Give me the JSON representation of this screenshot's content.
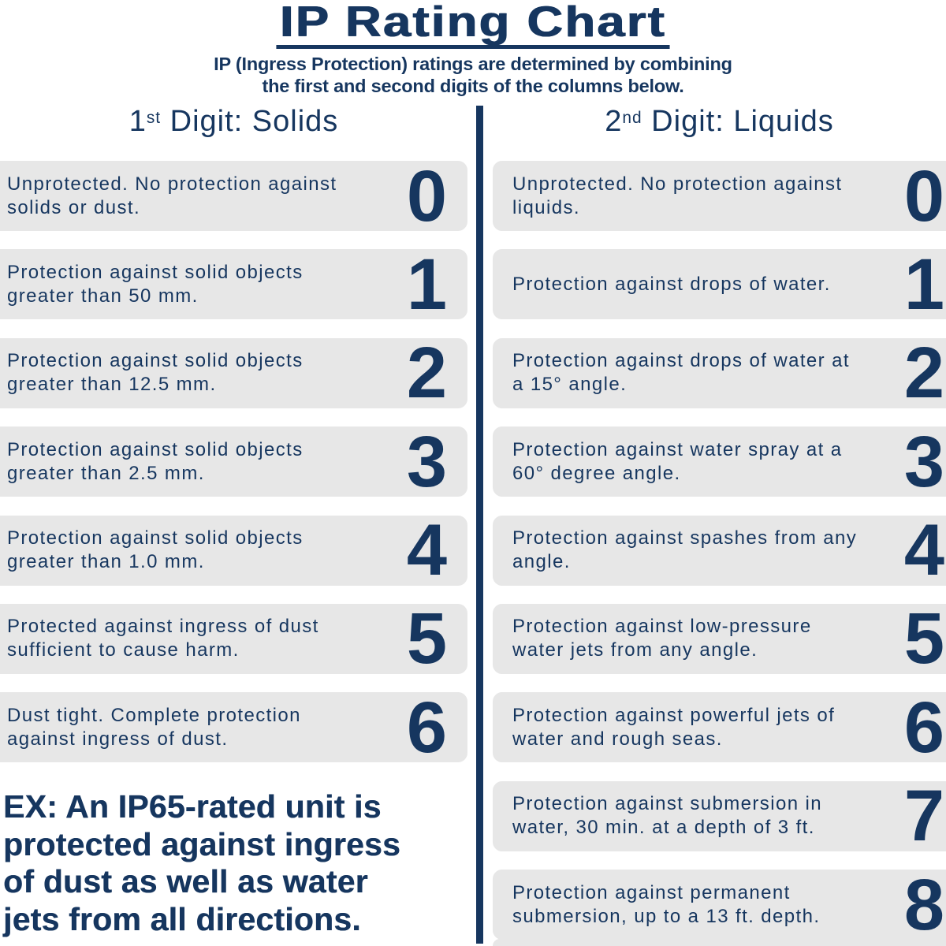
{
  "header": {
    "title": "IP Rating Chart",
    "subtitle": "IP (Ingress Protection) ratings are determined by combining\nthe first and second digits of the columns below."
  },
  "columns": {
    "solids": {
      "heading": {
        "number": "1",
        "ordinal": "st",
        "rest": " Digit: Solids"
      },
      "rows": [
        {
          "digit": "0",
          "description": "Unprotected. No protection against\nsolids or dust."
        },
        {
          "digit": "1",
          "description": "Protection against solid objects\ngreater than 50 mm."
        },
        {
          "digit": "2",
          "description": "Protection against solid objects\ngreater than 12.5 mm."
        },
        {
          "digit": "3",
          "description": "Protection against solid objects\ngreater than 2.5 mm."
        },
        {
          "digit": "4",
          "description": "Protection against solid objects\ngreater than 1.0 mm."
        },
        {
          "digit": "5",
          "description": "Protected against ingress of dust\nsufficient to cause harm."
        },
        {
          "digit": "6",
          "description": "Dust tight. Complete protection\nagainst ingress of dust."
        }
      ]
    },
    "liquids": {
      "heading": {
        "number": "2",
        "ordinal": "nd",
        "rest": " Digit: Liquids"
      },
      "rows": [
        {
          "digit": "0",
          "description": "Unprotected. No protection against\nliquids."
        },
        {
          "digit": "1",
          "description": "Protection against drops of water."
        },
        {
          "digit": "2",
          "description": "Protection against drops of water at\na 15° angle."
        },
        {
          "digit": "3",
          "description": "Protection against water spray at a\n60° degree angle."
        },
        {
          "digit": "4",
          "description": "Protection against spashes from any\nangle."
        },
        {
          "digit": "5",
          "description": "Protection against low-pressure\nwater jets from any angle."
        },
        {
          "digit": "6",
          "description": "Protection against powerful jets of\nwater and rough seas."
        },
        {
          "digit": "7",
          "description": "Protection against submersion in\nwater, 30 min. at a depth of 3 ft."
        },
        {
          "digit": "8",
          "description": "Protection against permanent\nsubmersion, up to a 13 ft. depth."
        }
      ]
    }
  },
  "example_note": "EX: An IP65-rated unit is\nprotected against ingress\nof dust as well as water\njets from all directions.",
  "colors": {
    "navy": "#16365F",
    "box-gray": "#E7E7E7",
    "page-bg": "#FFFFFF"
  }
}
